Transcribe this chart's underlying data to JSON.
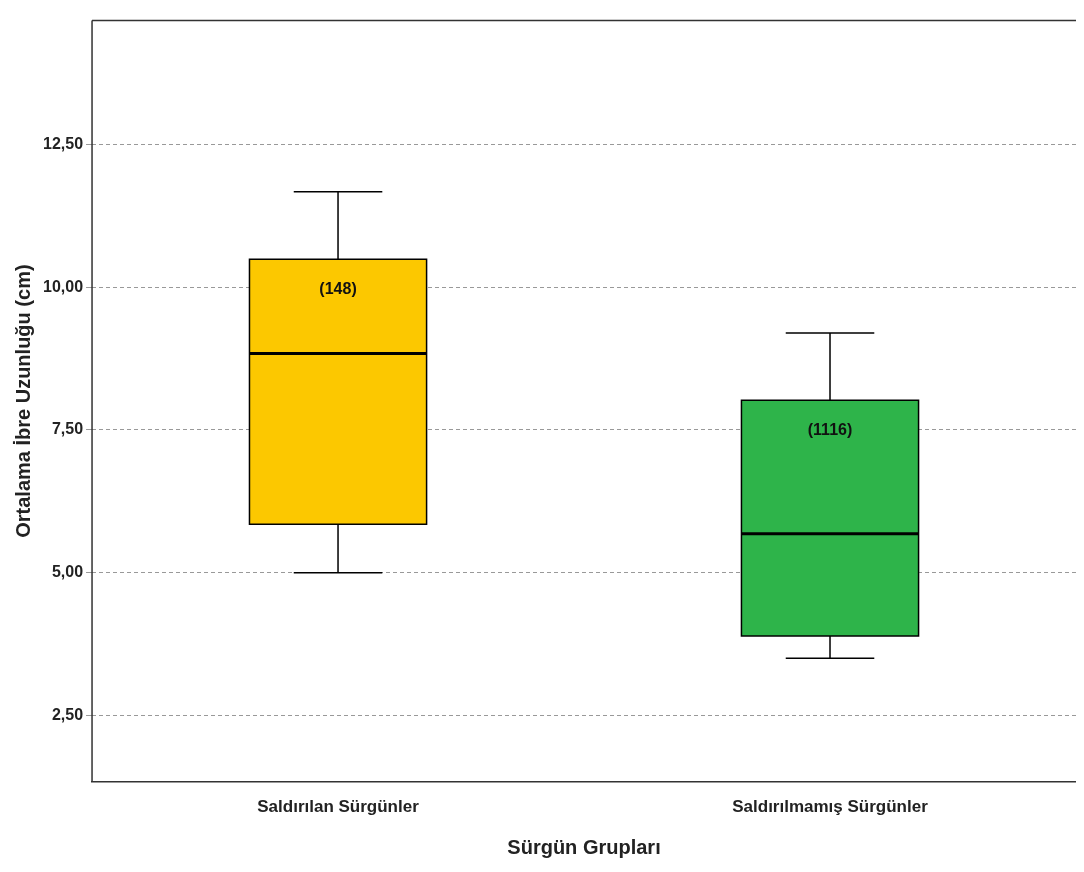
{
  "chart_data": {
    "type": "box",
    "xlabel": "Sürgün Grupları",
    "ylabel": "Ortalama İbre Uzunluğu (cm)",
    "categories": [
      "Saldırılan Sürgünler",
      "Saldırılmamış Sürgünler"
    ],
    "colors": [
      "#fcc800",
      "#2eb44a"
    ],
    "boxes": [
      {
        "low": 5.0,
        "q1": 5.85,
        "median": 8.84,
        "q3": 10.49,
        "high": 11.67
      },
      {
        "low": 3.5,
        "q1": 3.89,
        "median": 5.68,
        "q3": 8.02,
        "high": 9.2
      }
    ],
    "ylim": [
      1.34,
      14.67
    ],
    "yticks": [
      {
        "value": 2.5,
        "label": "2,50"
      },
      {
        "value": 5,
        "label": "5,00"
      },
      {
        "value": 7.5,
        "label": "7,50"
      },
      {
        "value": 10,
        "label": "10,00"
      },
      {
        "value": 12.5,
        "label": "12,50"
      }
    ],
    "grid": "y",
    "annotations": [
      "(148)",
      "(1116)"
    ]
  }
}
